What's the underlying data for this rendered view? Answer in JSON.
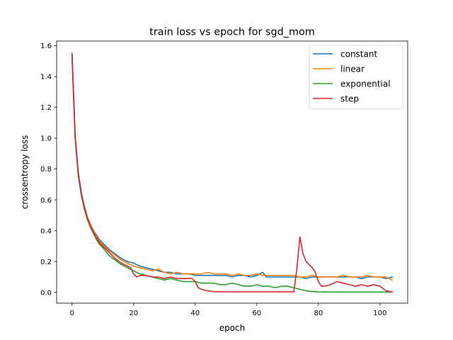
{
  "chart_data": {
    "type": "line",
    "title": "train loss vs epoch for sgd_mom",
    "xlabel": "epoch",
    "ylabel": "crossentropy loss",
    "xlim": [
      -5,
      109
    ],
    "ylim": [
      -0.07,
      1.63
    ],
    "xticks": [
      0,
      20,
      40,
      60,
      80,
      100
    ],
    "yticks": [
      0.0,
      0.2,
      0.4,
      0.6,
      0.8,
      1.0,
      1.2,
      1.4,
      1.6
    ],
    "xtick_labels": [
      "0",
      "20",
      "40",
      "60",
      "80",
      "100"
    ],
    "ytick_labels": [
      "0.0",
      "0.2",
      "0.4",
      "0.6",
      "0.8",
      "1.0",
      "1.2",
      "1.4",
      "1.6"
    ],
    "grid": false,
    "legend_position": "top-right",
    "series": [
      {
        "name": "constant",
        "color": "#1f77b4",
        "x": [
          0,
          1,
          2,
          3,
          4,
          5,
          6,
          7,
          8,
          9,
          10,
          12,
          14,
          16,
          18,
          20,
          22,
          24,
          26,
          28,
          30,
          32,
          34,
          36,
          38,
          40,
          42,
          44,
          46,
          48,
          50,
          52,
          54,
          56,
          58,
          60,
          62,
          63,
          64,
          66,
          68,
          70,
          72,
          74,
          76,
          78,
          80,
          82,
          84,
          86,
          88,
          90,
          92,
          94,
          96,
          98,
          100,
          102,
          104
        ],
        "y": [
          1.55,
          1.02,
          0.78,
          0.65,
          0.56,
          0.49,
          0.44,
          0.4,
          0.37,
          0.34,
          0.32,
          0.28,
          0.25,
          0.22,
          0.2,
          0.19,
          0.17,
          0.16,
          0.15,
          0.14,
          0.13,
          0.13,
          0.12,
          0.12,
          0.12,
          0.11,
          0.11,
          0.11,
          0.11,
          0.11,
          0.11,
          0.1,
          0.11,
          0.11,
          0.1,
          0.11,
          0.13,
          0.1,
          0.1,
          0.1,
          0.1,
          0.1,
          0.1,
          0.1,
          0.09,
          0.1,
          0.1,
          0.1,
          0.1,
          0.1,
          0.1,
          0.1,
          0.1,
          0.09,
          0.1,
          0.1,
          0.1,
          0.09,
          0.1
        ]
      },
      {
        "name": "linear",
        "color": "#ff7f0e",
        "x": [
          0,
          1,
          2,
          3,
          4,
          5,
          6,
          7,
          8,
          9,
          10,
          12,
          14,
          16,
          18,
          20,
          22,
          24,
          26,
          28,
          30,
          32,
          34,
          36,
          38,
          40,
          42,
          44,
          46,
          48,
          50,
          52,
          54,
          56,
          58,
          60,
          62,
          64,
          66,
          68,
          70,
          72,
          74,
          76,
          78,
          80,
          82,
          84,
          86,
          88,
          90,
          92,
          94,
          96,
          98,
          100,
          102,
          104
        ],
        "y": [
          1.54,
          1.01,
          0.77,
          0.64,
          0.55,
          0.49,
          0.44,
          0.4,
          0.36,
          0.33,
          0.31,
          0.27,
          0.24,
          0.21,
          0.19,
          0.17,
          0.16,
          0.15,
          0.14,
          0.15,
          0.13,
          0.12,
          0.13,
          0.12,
          0.12,
          0.12,
          0.12,
          0.13,
          0.12,
          0.12,
          0.12,
          0.11,
          0.12,
          0.11,
          0.11,
          0.12,
          0.11,
          0.11,
          0.11,
          0.11,
          0.11,
          0.11,
          0.1,
          0.1,
          0.11,
          0.1,
          0.1,
          0.1,
          0.1,
          0.11,
          0.1,
          0.1,
          0.1,
          0.11,
          0.1,
          0.1,
          0.1,
          0.08
        ]
      },
      {
        "name": "exponential",
        "color": "#2ca02c",
        "x": [
          0,
          1,
          2,
          3,
          4,
          5,
          6,
          7,
          8,
          9,
          10,
          12,
          14,
          16,
          18,
          20,
          22,
          24,
          26,
          28,
          30,
          32,
          34,
          36,
          38,
          40,
          42,
          44,
          46,
          48,
          50,
          52,
          54,
          56,
          58,
          60,
          62,
          64,
          66,
          68,
          70,
          72,
          74,
          76,
          78,
          80,
          84,
          88,
          92,
          96,
          100,
          104
        ],
        "y": [
          1.53,
          1.0,
          0.76,
          0.63,
          0.54,
          0.47,
          0.42,
          0.38,
          0.34,
          0.31,
          0.29,
          0.24,
          0.21,
          0.18,
          0.16,
          0.14,
          0.12,
          0.11,
          0.1,
          0.09,
          0.08,
          0.09,
          0.08,
          0.07,
          0.07,
          0.07,
          0.06,
          0.06,
          0.06,
          0.05,
          0.05,
          0.06,
          0.05,
          0.04,
          0.04,
          0.05,
          0.04,
          0.04,
          0.03,
          0.04,
          0.04,
          0.03,
          0.02,
          0.01,
          0.005,
          0.003,
          0.002,
          0.002,
          0.002,
          0.002,
          0.002,
          0.002
        ]
      },
      {
        "name": "step",
        "color": "#d62728",
        "x": [
          0,
          1,
          2,
          3,
          4,
          5,
          6,
          7,
          8,
          9,
          10,
          12,
          14,
          16,
          18,
          19,
          20,
          21,
          22,
          24,
          26,
          28,
          30,
          32,
          34,
          36,
          38,
          39,
          40,
          41,
          42,
          44,
          46,
          48,
          50,
          55,
          60,
          65,
          70,
          72,
          73,
          74,
          75,
          76,
          78,
          79,
          80,
          81,
          82,
          84,
          86,
          88,
          90,
          92,
          94,
          96,
          98,
          100,
          102,
          104
        ],
        "y": [
          1.55,
          1.02,
          0.78,
          0.64,
          0.55,
          0.48,
          0.43,
          0.39,
          0.35,
          0.32,
          0.3,
          0.26,
          0.22,
          0.19,
          0.17,
          0.16,
          0.12,
          0.1,
          0.11,
          0.11,
          0.1,
          0.1,
          0.09,
          0.1,
          0.09,
          0.09,
          0.09,
          0.09,
          0.07,
          0.03,
          0.02,
          0.01,
          0.005,
          0.004,
          0.004,
          0.004,
          0.004,
          0.004,
          0.004,
          0.004,
          0.15,
          0.36,
          0.25,
          0.2,
          0.16,
          0.13,
          0.07,
          0.04,
          0.04,
          0.05,
          0.07,
          0.06,
          0.05,
          0.04,
          0.05,
          0.04,
          0.05,
          0.04,
          0.01,
          0.003
        ]
      }
    ]
  }
}
